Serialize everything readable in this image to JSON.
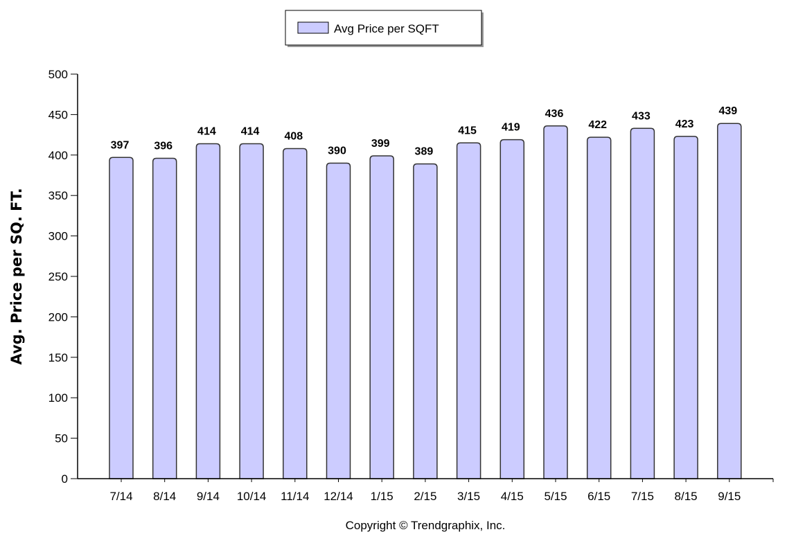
{
  "legend": {
    "label": "Avg Price per SQFT",
    "swatch_color": "#ccccff"
  },
  "copyright": "Copyright © Trendgraphix, Inc.",
  "colors": {
    "bar_fill": "#ccccff",
    "bar_stroke": "#333333",
    "axis": "#000000"
  },
  "chart_data": {
    "type": "bar",
    "title": "",
    "xlabel": "",
    "ylabel": "Avg. Price per SQ. FT.",
    "categories": [
      "7/14",
      "8/14",
      "9/14",
      "10/14",
      "11/14",
      "12/14",
      "1/15",
      "2/15",
      "3/15",
      "4/15",
      "5/15",
      "6/15",
      "7/15",
      "8/15",
      "9/15"
    ],
    "series": [
      {
        "name": "Avg Price per SQFT",
        "values": [
          397,
          396,
          414,
          414,
          408,
          390,
          399,
          389,
          415,
          419,
          436,
          422,
          433,
          423,
          439
        ]
      }
    ],
    "ylim": [
      0,
      500
    ],
    "yticks": [
      0,
      50,
      100,
      150,
      200,
      250,
      300,
      350,
      400,
      450,
      500
    ],
    "grid": false,
    "legend_position": "top-center",
    "data_labels": true
  }
}
